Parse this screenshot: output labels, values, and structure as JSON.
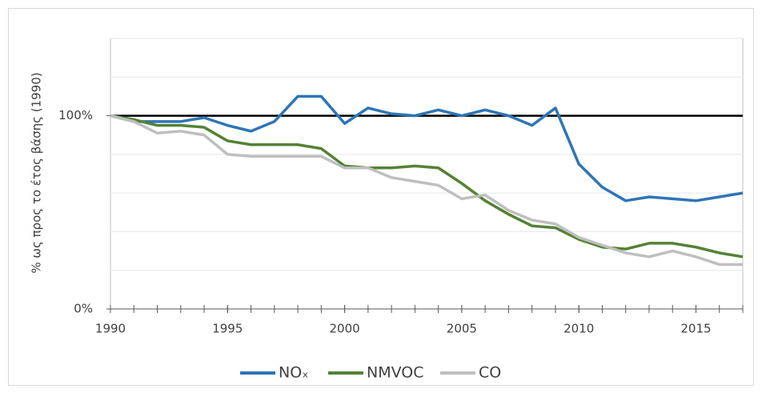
{
  "chart_data": {
    "type": "line",
    "y_label": "% ως προς το έτος βάσης (1990)",
    "x": [
      1990,
      1991,
      1992,
      1993,
      1994,
      1995,
      1996,
      1997,
      1998,
      1999,
      2000,
      2001,
      2002,
      2003,
      2004,
      2005,
      2006,
      2007,
      2008,
      2009,
      2010,
      2011,
      2012,
      2013,
      2014,
      2015,
      2016,
      2017
    ],
    "series": [
      {
        "name": "NOₓ",
        "color": "#2e75b6",
        "values": [
          100,
          97,
          97,
          97,
          99,
          95,
          92,
          97,
          110,
          110,
          96,
          104,
          101,
          100,
          103,
          100,
          103,
          100,
          95,
          104,
          75,
          63,
          56,
          58,
          57,
          56,
          58,
          60
        ]
      },
      {
        "name": "NMVOC",
        "color": "#548235",
        "values": [
          100,
          98,
          95,
          95,
          94,
          87,
          85,
          85,
          85,
          83,
          74,
          73,
          73,
          74,
          73,
          65,
          56,
          49,
          43,
          42,
          36,
          32,
          31,
          34,
          34,
          32,
          29,
          27
        ]
      },
      {
        "name": "CO",
        "color": "#bfbfbf",
        "values": [
          100,
          97,
          91,
          92,
          90,
          80,
          79,
          79,
          79,
          79,
          73,
          73,
          68,
          66,
          64,
          57,
          59,
          51,
          46,
          44,
          37,
          33,
          29,
          27,
          30,
          27,
          23,
          23
        ]
      }
    ],
    "xlim": [
      1990,
      2017
    ],
    "xticks": [
      1990,
      1995,
      2000,
      2005,
      2010,
      2015
    ],
    "ylim": [
      0,
      140
    ],
    "yticks": [
      {
        "value": 0,
        "label": "0%"
      },
      {
        "value": 100,
        "label": "100%"
      }
    ],
    "ygrid": [
      20,
      40,
      60,
      80,
      120,
      140
    ],
    "reference_line": {
      "value": 100,
      "color": "#000000"
    },
    "legend": "bottom"
  }
}
